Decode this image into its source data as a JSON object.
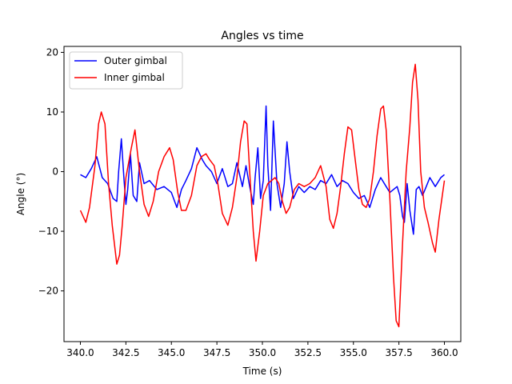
{
  "chart_data": {
    "type": "line",
    "title": "Angles vs time",
    "xlabel": "Time (s)",
    "ylabel": "Angle (°)",
    "xlim": [
      339.1,
      360.9
    ],
    "ylim": [
      -28.5,
      21.0
    ],
    "xticks": [
      340.0,
      342.5,
      345.0,
      347.5,
      350.0,
      352.5,
      355.0,
      357.5,
      360.0
    ],
    "xtick_labels": [
      "340.0",
      "342.5",
      "345.0",
      "347.5",
      "350.0",
      "352.5",
      "355.0",
      "357.5",
      "360.0"
    ],
    "yticks": [
      20,
      10,
      0,
      -10,
      -20
    ],
    "ytick_labels": [
      "20",
      "10",
      "0",
      "−10",
      "−20"
    ],
    "grid": false,
    "legend_position": "upper-left",
    "series": [
      {
        "name": "Outer gimbal",
        "color": "#0000ff",
        "x": [
          340.0,
          340.3,
          340.6,
          340.9,
          341.2,
          341.5,
          341.8,
          342.0,
          342.1,
          342.25,
          342.4,
          342.5,
          342.6,
          342.75,
          342.9,
          343.1,
          343.25,
          343.5,
          343.8,
          344.2,
          344.6,
          345.0,
          345.3,
          345.55,
          345.8,
          346.1,
          346.4,
          346.7,
          346.9,
          347.2,
          347.5,
          347.8,
          348.1,
          348.35,
          348.6,
          348.9,
          349.1,
          349.3,
          349.5,
          349.6,
          349.75,
          349.9,
          350.05,
          350.2,
          350.3,
          350.45,
          350.6,
          350.8,
          351.0,
          351.2,
          351.35,
          351.5,
          351.7,
          352.0,
          352.3,
          352.6,
          352.9,
          353.2,
          353.5,
          353.8,
          354.1,
          354.4,
          354.7,
          355.0,
          355.3,
          355.6,
          355.9,
          356.2,
          356.5,
          356.8,
          357.0,
          357.2,
          357.4,
          357.55,
          357.7,
          357.8,
          357.95,
          358.1,
          358.3,
          358.45,
          358.6,
          358.8,
          359.0,
          359.2,
          359.5,
          359.8,
          360.0
        ],
        "y": [
          -0.5,
          -1.0,
          0.5,
          2.5,
          -1.0,
          -2.0,
          -4.5,
          -5.0,
          0.0,
          5.5,
          -1.5,
          -5.5,
          -3.0,
          3.0,
          -4.0,
          -5.0,
          1.5,
          -2.0,
          -1.5,
          -3.0,
          -2.5,
          -3.5,
          -6.0,
          -3.0,
          -1.5,
          0.5,
          4.0,
          2.0,
          1.0,
          0.0,
          -2.0,
          0.5,
          -2.5,
          -2.0,
          1.5,
          -2.5,
          1.0,
          -2.5,
          -5.5,
          -1.0,
          4.0,
          -4.5,
          -1.5,
          11.0,
          1.0,
          -6.5,
          8.5,
          -2.0,
          -6.0,
          -2.0,
          5.0,
          0.0,
          -4.5,
          -2.5,
          -3.5,
          -2.5,
          -3.0,
          -1.5,
          -2.0,
          -0.5,
          -2.5,
          -1.5,
          -2.0,
          -3.5,
          -4.5,
          -4.0,
          -6.0,
          -3.0,
          -1.0,
          -2.5,
          -3.5,
          -3.0,
          -2.5,
          -4.0,
          -7.5,
          -8.5,
          -2.0,
          -6.5,
          -10.5,
          -3.0,
          -2.5,
          -4.0,
          -2.5,
          -1.0,
          -2.5,
          -1.0,
          -0.5
        ]
      },
      {
        "name": "Inner gimbal",
        "color": "#ff0000",
        "x": [
          340.0,
          340.3,
          340.5,
          340.8,
          341.0,
          341.15,
          341.35,
          341.55,
          341.75,
          342.0,
          342.15,
          342.3,
          342.5,
          342.8,
          343.0,
          343.25,
          343.5,
          343.75,
          344.0,
          344.3,
          344.6,
          344.9,
          345.1,
          345.35,
          345.55,
          345.8,
          346.1,
          346.4,
          346.65,
          346.9,
          347.1,
          347.35,
          347.55,
          347.8,
          348.1,
          348.35,
          348.6,
          348.8,
          349.0,
          349.15,
          349.3,
          349.5,
          349.65,
          349.85,
          350.05,
          350.3,
          350.5,
          350.7,
          350.9,
          351.1,
          351.3,
          351.5,
          351.75,
          352.0,
          352.3,
          352.6,
          352.9,
          353.2,
          353.5,
          353.7,
          353.9,
          354.1,
          354.3,
          354.5,
          354.7,
          354.9,
          355.1,
          355.3,
          355.5,
          355.7,
          355.9,
          356.1,
          356.3,
          356.5,
          356.65,
          356.8,
          357.0,
          357.2,
          357.35,
          357.5,
          357.7,
          357.9,
          358.1,
          358.25,
          358.4,
          358.55,
          358.7,
          358.9,
          359.1,
          359.35,
          359.5,
          359.7,
          360.0
        ],
        "y": [
          -6.5,
          -8.5,
          -6.0,
          1.0,
          8.0,
          10.0,
          8.0,
          -2.0,
          -9.0,
          -15.5,
          -14.0,
          -9.0,
          -1.0,
          4.0,
          7.0,
          0.0,
          -5.5,
          -7.5,
          -5.0,
          0.0,
          2.5,
          4.0,
          2.0,
          -3.5,
          -6.5,
          -6.5,
          -4.0,
          1.0,
          2.5,
          3.0,
          2.0,
          1.0,
          -2.0,
          -7.0,
          -9.0,
          -6.0,
          -1.0,
          5.0,
          8.5,
          8.0,
          0.0,
          -10.0,
          -15.0,
          -10.0,
          -4.0,
          -2.0,
          -1.5,
          -1.0,
          -2.0,
          -5.0,
          -7.0,
          -6.0,
          -3.0,
          -2.0,
          -2.5,
          -2.0,
          -1.0,
          1.0,
          -2.5,
          -8.0,
          -9.5,
          -7.0,
          -2.5,
          3.0,
          7.5,
          7.0,
          2.0,
          -3.0,
          -5.5,
          -6.0,
          -4.5,
          0.0,
          6.0,
          10.5,
          11.0,
          7.0,
          -4.5,
          -17.5,
          -25.0,
          -26.0,
          -12.0,
          0.0,
          7.5,
          15.0,
          18.0,
          12.0,
          0.0,
          -6.0,
          -8.5,
          -12.0,
          -13.5,
          -8.0,
          -1.5
        ]
      }
    ]
  }
}
